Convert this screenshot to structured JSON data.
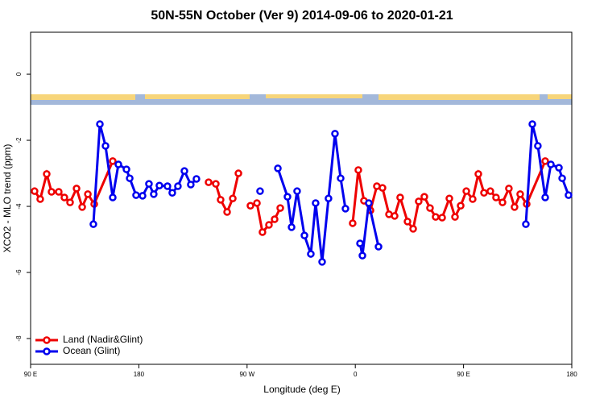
{
  "chart_data": {
    "type": "line",
    "title": "50N-55N October (Ver 9)   2014-09-06 to 2020-01-21",
    "x_label": "Longitude (deg E)",
    "y_label": "XCO2 - MLO trend (ppm)",
    "xlim": [
      90,
      540
    ],
    "ylim": [
      -8.78,
      1.27
    ],
    "xticks": [
      {
        "value": 90,
        "label": "90 E"
      },
      180,
      {
        "value": 270,
        "label": "90 W"
      },
      {
        "value": 360,
        "label": "0"
      },
      {
        "value": 450,
        "label": "90 E"
      },
      {
        "value": 540,
        "label": "180"
      }
    ],
    "yticks": [
      0,
      -2,
      -4,
      -6,
      -8
    ],
    "legend": "bottom-left",
    "series": [
      {
        "name": "Land (Nadir&Glint)",
        "color": "#ee0000",
        "x": [
          93.3,
          98.0,
          103.4,
          107.4,
          113.4,
          118.1,
          122.8,
          128.2,
          132.9,
          137.6,
          142.9,
          158.3,
          null,
          238.0,
          244.0,
          248.0,
          253.4,
          258.1,
          262.8,
          null,
          272.8,
          278.2,
          282.8,
          288.2,
          292.9,
          297.6,
          null,
          357.8,
          362.5,
          367.2,
          372.6,
          377.9,
          382.6,
          388.0,
          392.7,
          397.3,
          403.4,
          408.1,
          412.7,
          417.4,
          422.1,
          426.8,
          432.2,
          438.2,
          442.9,
          447.6,
          452.3,
          457.6,
          462.3,
          467.0,
          472.3,
          477.0,
          482.4,
          487.7,
          492.4,
          497.1,
          502.5,
          517.9
        ],
        "values": [
          -3.54,
          -3.78,
          -3.02,
          -3.56,
          -3.56,
          -3.73,
          -3.88,
          -3.46,
          -4.02,
          -3.63,
          -3.93,
          -2.63,
          null,
          -3.27,
          -3.32,
          -3.8,
          -4.17,
          -3.76,
          -3.0,
          null,
          -3.98,
          -3.9,
          -4.78,
          -4.56,
          -4.39,
          -4.05,
          null,
          -4.51,
          -2.9,
          -3.83,
          -4.12,
          -3.39,
          -3.44,
          -4.24,
          -4.29,
          -3.73,
          -4.46,
          -4.68,
          -3.85,
          -3.71,
          -4.05,
          -4.32,
          -4.34,
          -3.76,
          -4.32,
          -3.98,
          -3.54,
          -3.78,
          -3.02,
          -3.59,
          -3.54,
          -3.73,
          -3.88,
          -3.46,
          -4.02,
          -3.63,
          -3.93,
          -2.63
        ]
      },
      {
        "name": "Ocean (Glint)",
        "color": "#0000ee",
        "x": [
          142.2,
          147.6,
          152.3,
          158.3,
          163.0,
          169.7,
          172.4,
          177.7,
          183.1,
          188.4,
          192.4,
          197.1,
          203.8,
          207.8,
          212.5,
          217.9,
          223.2,
          227.9,
          null,
          280.8,
          null,
          295.6,
          303.6,
          307.0,
          311.6,
          317.7,
          323.0,
          327.0,
          332.4,
          337.7,
          343.1,
          347.8,
          351.8,
          null,
          363.9,
          365.9,
          371.2,
          379.3,
          null,
          501.8,
          507.2,
          511.8,
          517.9,
          522.6,
          529.3,
          532.0,
          537.3
        ],
        "values": [
          -4.54,
          -1.51,
          -2.17,
          -3.73,
          -2.73,
          -2.88,
          -3.15,
          -3.66,
          -3.68,
          -3.32,
          -3.63,
          -3.37,
          -3.39,
          -3.59,
          -3.39,
          -2.93,
          -3.34,
          -3.17,
          null,
          -3.54,
          null,
          -2.85,
          -3.71,
          -4.63,
          -3.54,
          -4.88,
          -5.44,
          -3.9,
          -5.68,
          -3.76,
          -1.8,
          -3.15,
          -4.07,
          null,
          -5.12,
          -5.49,
          -3.9,
          -5.22,
          null,
          -4.54,
          -1.51,
          -2.17,
          -3.73,
          -2.73,
          -2.83,
          -3.15,
          -3.66
        ]
      }
    ]
  }
}
